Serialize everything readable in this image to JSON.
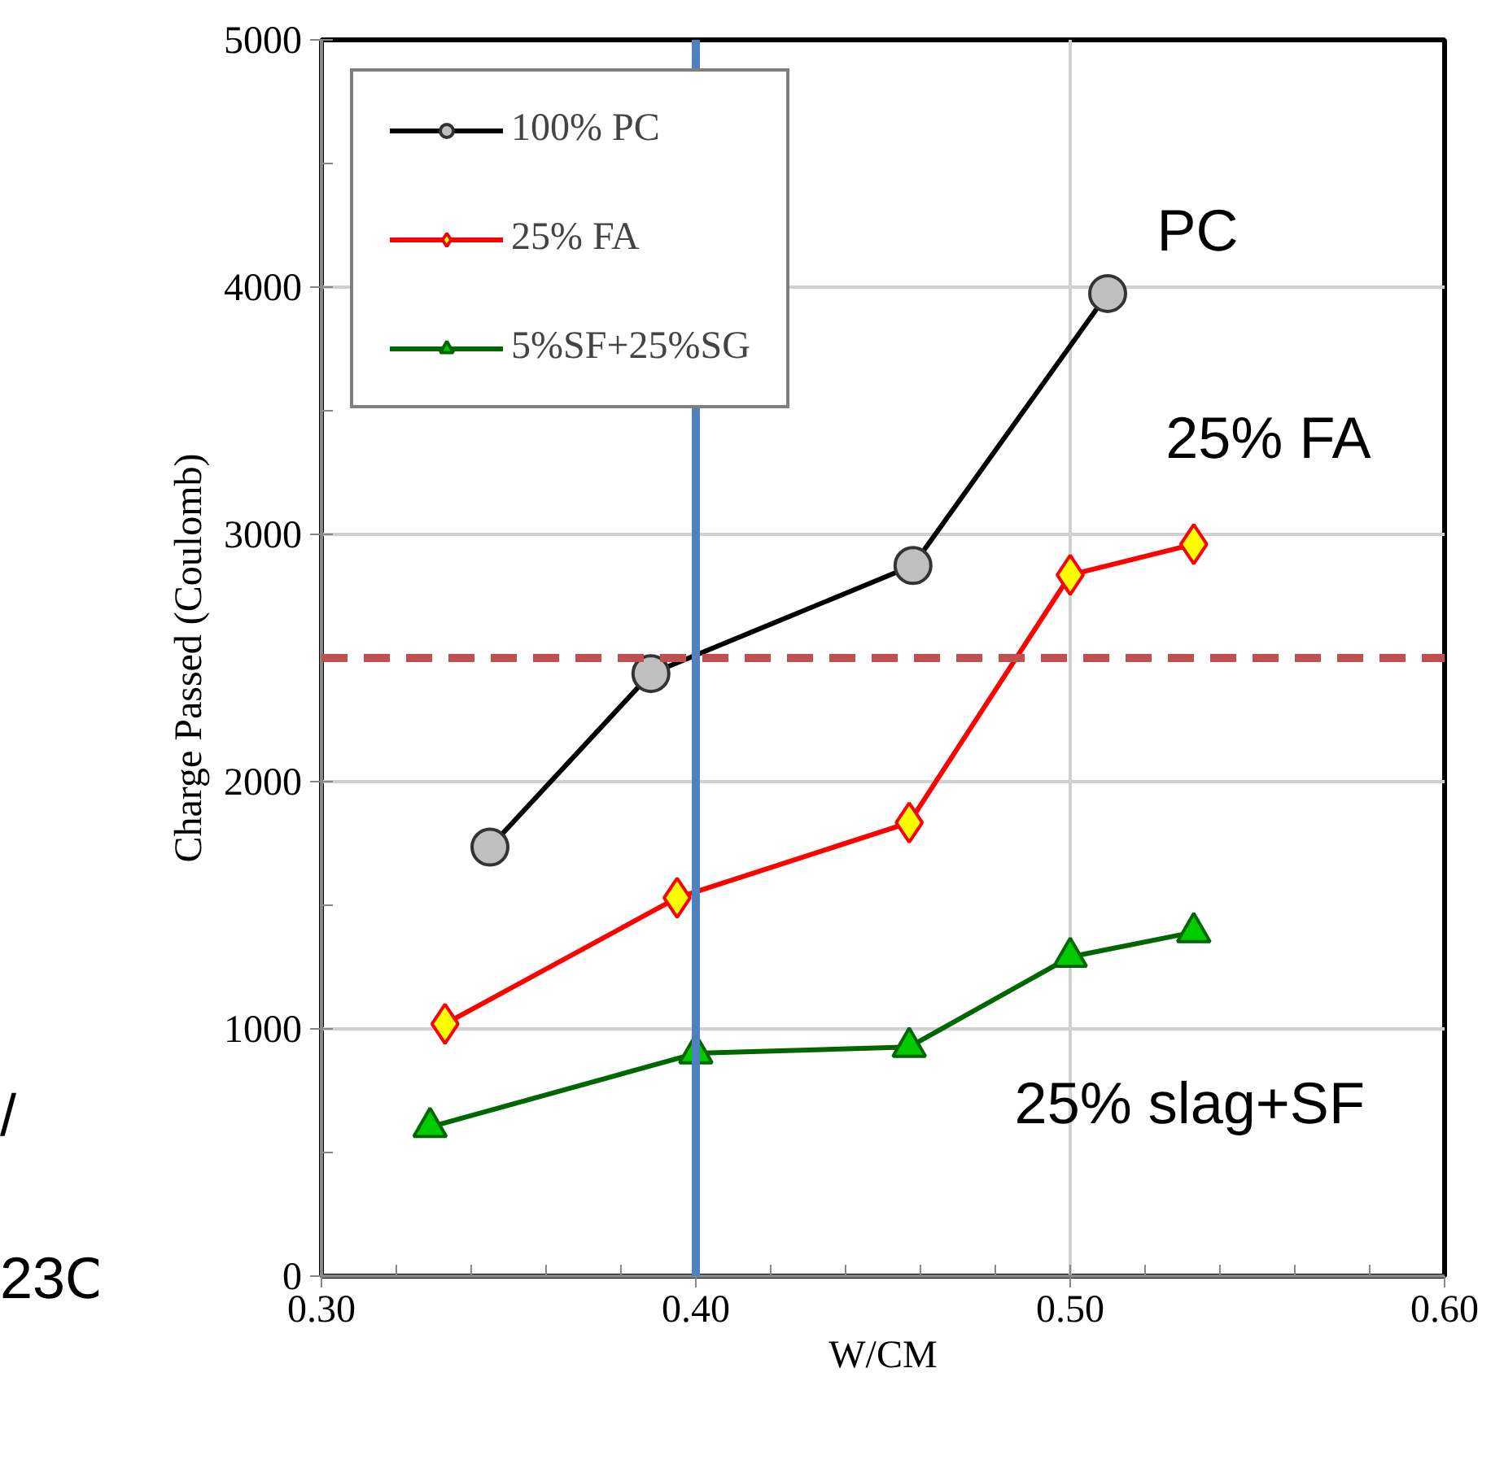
{
  "chart_data": {
    "type": "line",
    "xlabel": "W/CM",
    "ylabel": "Charge Passed (Coulomb)",
    "xlim": [
      0.3,
      0.6
    ],
    "xticks": [
      {
        "value": 0.3,
        "label": "0.30"
      },
      {
        "value": 0.4,
        "label": "0.40"
      },
      {
        "value": 0.5,
        "label": "0.50"
      },
      {
        "value": 0.6,
        "label": "0.60"
      }
    ],
    "ylim": [
      0,
      5000
    ],
    "yticks": [
      0,
      1000,
      2000,
      3000,
      4000,
      5000
    ],
    "grid": true,
    "legend": "top left",
    "series": [
      {
        "name": "100% PC",
        "color": "#000000",
        "marker": "circle",
        "x": [
          0.345,
          0.388,
          0.458,
          0.51
        ],
        "values": [
          1735,
          2437,
          2874,
          3974
        ]
      },
      {
        "name": "25% FA",
        "color": "#ff0000",
        "marker": "diamond",
        "x": [
          0.333,
          0.395,
          0.457,
          0.5,
          0.533
        ],
        "values": [
          1020,
          1530,
          1834,
          2836,
          2960
        ]
      },
      {
        "name": "5%SF+25%SG",
        "color": "#006600",
        "marker": "triangle",
        "x": [
          0.329,
          0.4,
          0.457,
          0.5,
          0.533
        ],
        "values": [
          603,
          901,
          927,
          1291,
          1391
        ]
      }
    ],
    "ref_lines": [
      {
        "axis": "y",
        "value": 2500,
        "color": "#c0504d",
        "line_style": "dashed"
      },
      {
        "axis": "x",
        "value": 0.4,
        "color": "#4f81bd",
        "line_style": "solid"
      }
    ],
    "annotations": [
      "PC",
      "25% FA",
      "25% slag+SF",
      "/",
      "23C"
    ]
  }
}
